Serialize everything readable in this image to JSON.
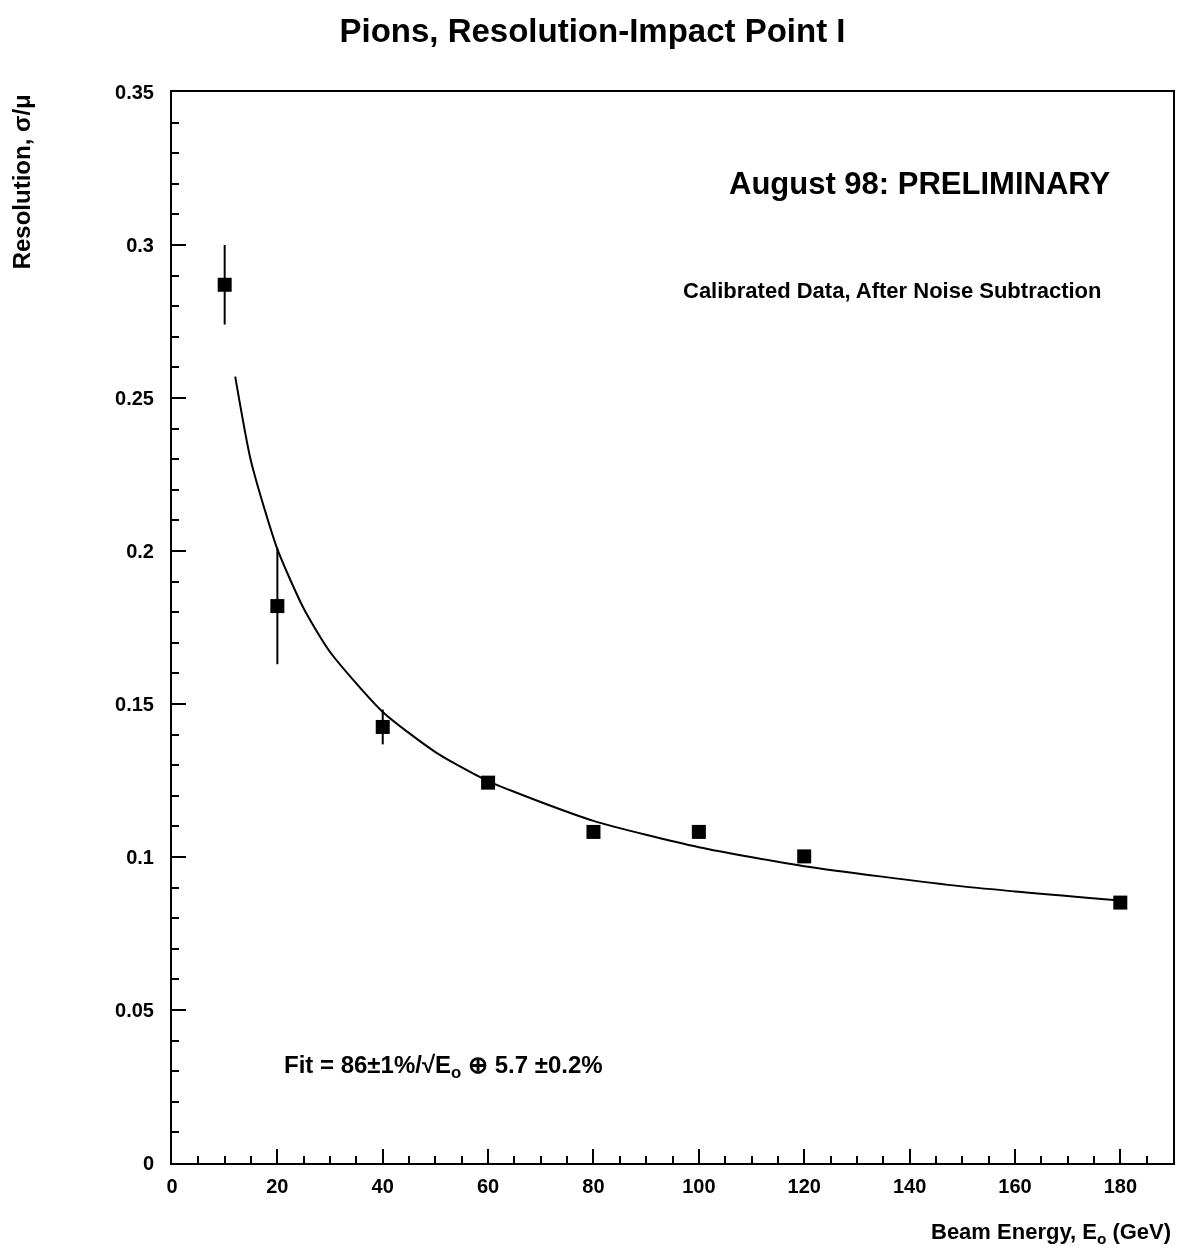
{
  "chart_data": {
    "type": "scatter",
    "title": "Pions, Resolution-Impact Point I",
    "xlabel": "Beam Energy, E$_{o}$ (GeV)",
    "ylabel": "Resolution, σ/μ",
    "annotations": [
      "August 98: PRELIMINARY",
      "Calibrated Data, After Noise Subtraction",
      "Fit = 86±1%/√E$_{o}$ ⊕ 5.7 ±0.2%"
    ],
    "series": [
      {
        "type": "scatter",
        "color": "#000000",
        "marker": "square",
        "x": [
          10,
          20,
          40,
          60,
          80,
          100,
          120,
          180
        ],
        "values": [
          0.287,
          0.182,
          0.1425,
          0.1243,
          0.1082,
          0.1082,
          0.1002,
          0.0851
        ],
        "errors": [
          0.013,
          0.019,
          0.0057,
          null,
          null,
          null,
          null,
          null
        ]
      },
      {
        "type": "line",
        "color": "#000000",
        "marker": "none",
        "line_style": "solid",
        "x": [
          12,
          15,
          20,
          25,
          30,
          40,
          50,
          60,
          80,
          100,
          120,
          150,
          180
        ],
        "values": [
          0.257,
          0.2293,
          0.2006,
          0.1812,
          0.167,
          0.1474,
          0.1343,
          0.1248,
          0.1118,
          0.1032,
          0.097,
          0.0904,
          0.0858
        ]
      }
    ],
    "xlim": [
      0,
      190
    ],
    "xticks": [
      0,
      {
        "value": 5,
        "label": null
      },
      {
        "value": 10,
        "label": null
      },
      {
        "value": 15,
        "label": null
      },
      20,
      {
        "value": 25,
        "label": null
      },
      {
        "value": 30,
        "label": null
      },
      {
        "value": 35,
        "label": null
      },
      40,
      {
        "value": 45,
        "label": null
      },
      {
        "value": 50,
        "label": null
      },
      {
        "value": 55,
        "label": null
      },
      60,
      {
        "value": 65,
        "label": null
      },
      {
        "value": 70,
        "label": null
      },
      {
        "value": 75,
        "label": null
      },
      80,
      {
        "value": 85,
        "label": null
      },
      {
        "value": 90,
        "label": null
      },
      {
        "value": 95,
        "label": null
      },
      100,
      {
        "value": 105,
        "label": null
      },
      {
        "value": 110,
        "label": null
      },
      {
        "value": 115,
        "label": null
      },
      120,
      {
        "value": 125,
        "label": null
      },
      {
        "value": 130,
        "label": null
      },
      {
        "value": 135,
        "label": null
      },
      140,
      {
        "value": 145,
        "label": null
      },
      {
        "value": 150,
        "label": null
      },
      {
        "value": 155,
        "label": null
      },
      160,
      {
        "value": 165,
        "label": null
      },
      {
        "value": 170,
        "label": null
      },
      {
        "value": 175,
        "label": null
      },
      180,
      {
        "value": 185,
        "label": null
      }
    ],
    "ylim": [
      0,
      0.35
    ],
    "yticks": [
      0,
      {
        "value": 0.01,
        "label": null
      },
      {
        "value": 0.02,
        "label": null
      },
      {
        "value": 0.03,
        "label": null
      },
      {
        "value": 0.04,
        "label": null
      },
      0.05,
      {
        "value": 0.06,
        "label": null
      },
      {
        "value": 0.07,
        "label": null
      },
      {
        "value": 0.08,
        "label": null
      },
      {
        "value": 0.09,
        "label": null
      },
      0.1,
      {
        "value": 0.11,
        "label": null
      },
      {
        "value": 0.12,
        "label": null
      },
      {
        "value": 0.13,
        "label": null
      },
      {
        "value": 0.14,
        "label": null
      },
      0.15,
      {
        "value": 0.16,
        "label": null
      },
      {
        "value": 0.17,
        "label": null
      },
      {
        "value": 0.18,
        "label": null
      },
      {
        "value": 0.19,
        "label": null
      },
      0.2,
      {
        "value": 0.21,
        "label": null
      },
      {
        "value": 0.22,
        "label": null
      },
      {
        "value": 0.23,
        "label": null
      },
      {
        "value": 0.24,
        "label": null
      },
      0.25,
      {
        "value": 0.26,
        "label": null
      },
      {
        "value": 0.27,
        "label": null
      },
      {
        "value": 0.28,
        "label": null
      },
      {
        "value": 0.29,
        "label": null
      },
      0.3,
      {
        "value": 0.31,
        "label": null
      },
      {
        "value": 0.32,
        "label": null
      },
      {
        "value": 0.33,
        "label": null
      },
      {
        "value": 0.34,
        "label": null
      },
      0.35
    ],
    "grid": false
  }
}
